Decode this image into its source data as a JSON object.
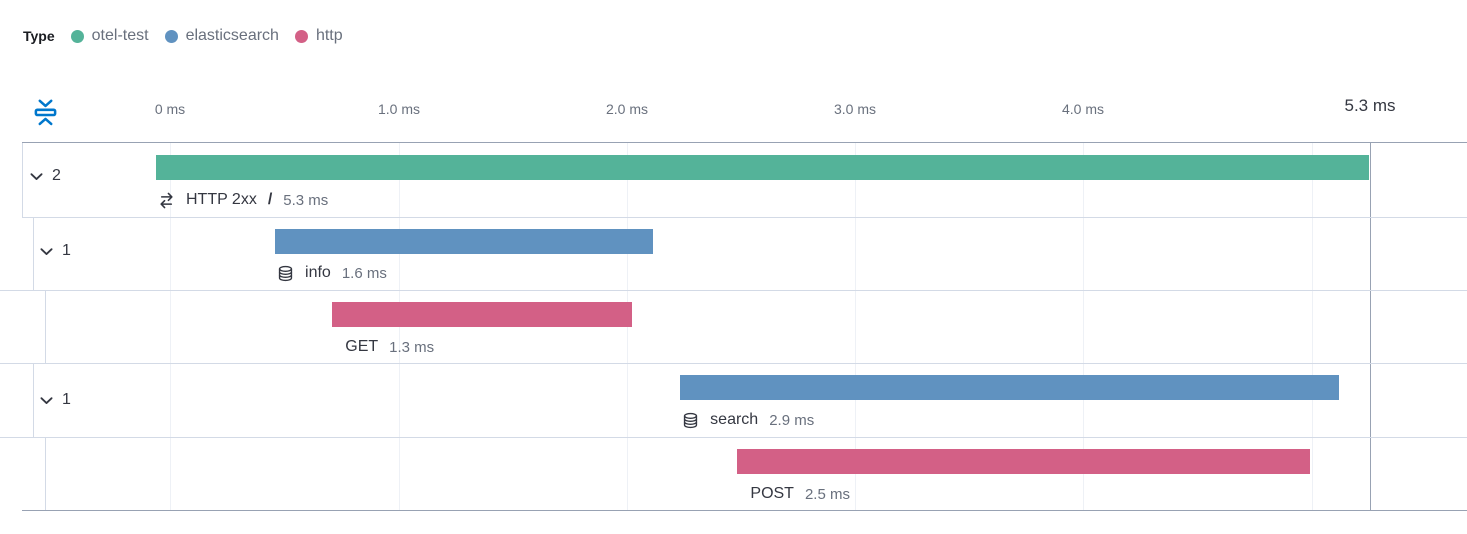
{
  "legend": {
    "title": "Type",
    "items": [
      {
        "label": "otel-test",
        "color": "#54b399"
      },
      {
        "label": "elasticsearch",
        "color": "#6092c0"
      },
      {
        "label": "http",
        "color": "#d36086"
      }
    ]
  },
  "axis": {
    "tick_labels": [
      "0 ms",
      "1.0 ms",
      "2.0 ms",
      "3.0 ms",
      "4.0 ms"
    ],
    "total_duration": "5.3 ms"
  },
  "waterfall": {
    "rows": [
      {
        "id": "transaction-http-2xx",
        "name": "HTTP 2xx",
        "separator": "/",
        "duration_label": "5.3 ms",
        "type": "otel-test",
        "icon": "transaction-icon",
        "toggle_count": "2",
        "start_ms": 0,
        "duration_ms": 5.3
      },
      {
        "id": "span-info",
        "name": "info",
        "duration_label": "1.6 ms",
        "type": "elasticsearch",
        "icon": "database-icon",
        "toggle_count": "1",
        "start_ms": 0.52,
        "duration_ms": 1.65
      },
      {
        "id": "span-get",
        "name": "GET",
        "duration_label": "1.3 ms",
        "type": "http",
        "start_ms": 0.77,
        "duration_ms": 1.31
      },
      {
        "id": "span-search",
        "name": "search",
        "duration_label": "2.9 ms",
        "type": "elasticsearch",
        "icon": "database-icon",
        "toggle_count": "1",
        "start_ms": 2.29,
        "duration_ms": 2.88
      },
      {
        "id": "span-post",
        "name": "POST",
        "duration_label": "2.5 ms",
        "type": "http",
        "start_ms": 2.54,
        "duration_ms": 2.5
      }
    ]
  },
  "colors": {
    "otel-test": "#54b399",
    "elasticsearch": "#6092c0",
    "http": "#d36086"
  }
}
